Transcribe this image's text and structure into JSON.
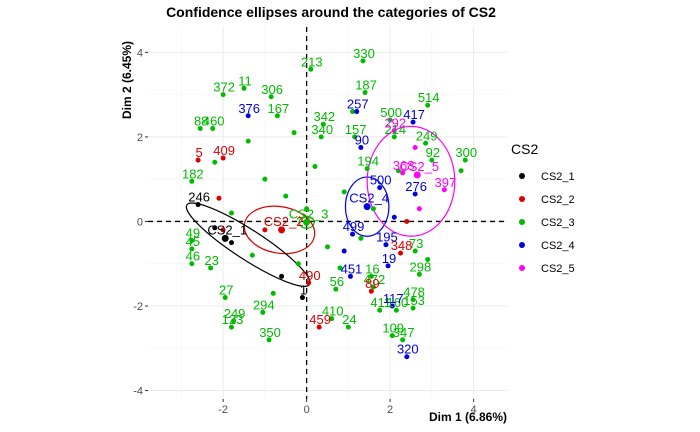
{
  "chart_data": {
    "type": "scatter",
    "title": "Confidence ellipses around the categories of CS2",
    "xlabel": "Dim 1 (6.86%)",
    "ylabel": "Dim 2 (6.45%)",
    "xlim": [
      -3.8,
      4.8
    ],
    "ylim": [
      -4.2,
      4.6
    ],
    "x_ticks": [
      -2,
      0,
      2,
      4
    ],
    "y_ticks": [
      -4,
      -2,
      0,
      2,
      4
    ],
    "x_tick_labels": [
      "-2",
      "0",
      "2",
      "4"
    ],
    "y_tick_labels": [
      "-4",
      "-2",
      "0",
      "2",
      "4"
    ],
    "grid": true,
    "reference_lines": {
      "x": 0,
      "y": 0,
      "style": "dashed"
    },
    "legend": {
      "title": "CS2",
      "position": "right",
      "entries": [
        {
          "label": "CS2_1",
          "color": "#000000"
        },
        {
          "label": "CS2_2",
          "color": "#dd0000"
        },
        {
          "label": "CS2_3",
          "color": "#00bb00"
        },
        {
          "label": "CS2_4",
          "color": "#0000dd"
        },
        {
          "label": "CS2_5",
          "color": "#ff00ff"
        }
      ]
    },
    "series": [
      {
        "name": "CS2_1",
        "color": "#000000",
        "points": [
          {
            "label": "246",
            "x": -2.6,
            "y": 0.4
          },
          {
            "label": "1",
            "x": -0.1,
            "y": -1.8
          },
          {
            "label": "",
            "x": -2.2,
            "y": -0.15
          },
          {
            "label": "",
            "x": -1.8,
            "y": -0.5
          },
          {
            "label": "",
            "x": -0.6,
            "y": -1.3
          }
        ],
        "centroid": {
          "label": "CS2_1",
          "x": -1.95,
          "y": -0.4
        },
        "ellipse": {
          "cx": -1.4,
          "cy": -0.55,
          "rx": 1.75,
          "ry": 0.35,
          "angle_deg": -33
        }
      },
      {
        "name": "CS2_2",
        "color": "#dd0000",
        "points": [
          {
            "label": "5",
            "x": -2.6,
            "y": 1.45
          },
          {
            "label": "409",
            "x": -2.0,
            "y": 1.5
          },
          {
            "label": "490",
            "x": 0.05,
            "y": -1.45
          },
          {
            "label": "459",
            "x": 0.3,
            "y": -2.5
          },
          {
            "label": "89",
            "x": 1.55,
            "y": -1.65
          },
          {
            "label": "348",
            "x": 2.25,
            "y": -0.75
          },
          {
            "label": "",
            "x": -2.1,
            "y": 0.55
          },
          {
            "label": "",
            "x": -1.0,
            "y": -0.2
          },
          {
            "label": "",
            "x": 2.4,
            "y": 0.0
          },
          {
            "label": "",
            "x": -2.0,
            "y": -0.2
          }
        ],
        "centroid": {
          "label": "CS2_2",
          "x": -0.6,
          "y": -0.2
        },
        "ellipse": {
          "cx": -0.65,
          "cy": -0.2,
          "rx": 0.85,
          "ry": 0.55,
          "angle_deg": -10
        }
      },
      {
        "name": "CS2_3",
        "color": "#00bb00",
        "points": [
          {
            "label": "213",
            "x": 0.1,
            "y": 3.6
          },
          {
            "label": "330",
            "x": 1.35,
            "y": 3.8
          },
          {
            "label": "372",
            "x": -2.0,
            "y": 3.0
          },
          {
            "label": "11",
            "x": -1.5,
            "y": 3.15
          },
          {
            "label": "306",
            "x": -0.85,
            "y": 2.95
          },
          {
            "label": "187",
            "x": 1.4,
            "y": 3.05
          },
          {
            "label": "514",
            "x": 2.9,
            "y": 2.75
          },
          {
            "label": "500",
            "x": 2.0,
            "y": 2.4
          },
          {
            "label": "342",
            "x": 0.4,
            "y": 2.3
          },
          {
            "label": "167",
            "x": -0.7,
            "y": 2.5
          },
          {
            "label": "249",
            "x": 2.85,
            "y": 1.85
          },
          {
            "label": "300",
            "x": 3.8,
            "y": 1.45
          },
          {
            "label": "214",
            "x": 2.1,
            "y": 2.0
          },
          {
            "label": "340",
            "x": 0.35,
            "y": 2.0
          },
          {
            "label": "157",
            "x": 1.15,
            "y": 2.0
          },
          {
            "label": "92",
            "x": 3.0,
            "y": 1.45
          },
          {
            "label": "194",
            "x": 1.45,
            "y": 1.25
          },
          {
            "label": "88",
            "x": -2.55,
            "y": 2.2
          },
          {
            "label": "460",
            "x": -2.25,
            "y": 2.2
          },
          {
            "label": "182",
            "x": -2.75,
            "y": 0.95
          },
          {
            "label": "49",
            "x": -2.75,
            "y": -0.45
          },
          {
            "label": "45",
            "x": -2.75,
            "y": -0.65
          },
          {
            "label": "46",
            "x": -2.75,
            "y": -1.0
          },
          {
            "label": "23",
            "x": -2.3,
            "y": -1.1
          },
          {
            "label": "27",
            "x": -1.95,
            "y": -1.8
          },
          {
            "label": "123",
            "x": -1.8,
            "y": -2.5
          },
          {
            "label": "249",
            "x": -1.75,
            "y": -2.35
          },
          {
            "label": "294",
            "x": -1.05,
            "y": -2.15
          },
          {
            "label": "350",
            "x": -0.9,
            "y": -2.8
          },
          {
            "label": "24",
            "x": 1.0,
            "y": -2.5
          },
          {
            "label": "410",
            "x": 0.6,
            "y": -2.3
          },
          {
            "label": "411",
            "x": 1.75,
            "y": -2.1
          },
          {
            "label": "160",
            "x": 2.15,
            "y": -2.1
          },
          {
            "label": "153",
            "x": 2.55,
            "y": -2.05
          },
          {
            "label": "478",
            "x": 2.55,
            "y": -1.85
          },
          {
            "label": "347",
            "x": 2.3,
            "y": -2.8
          },
          {
            "label": "109",
            "x": 2.05,
            "y": -2.7
          },
          {
            "label": "298",
            "x": 2.7,
            "y": -1.25
          },
          {
            "label": "73",
            "x": 2.6,
            "y": -0.7
          },
          {
            "label": "16",
            "x": 1.55,
            "y": -1.3
          },
          {
            "label": "472",
            "x": 1.6,
            "y": -1.55
          },
          {
            "label": "56",
            "x": 0.7,
            "y": -1.6
          },
          {
            "label": "",
            "x": -1.0,
            "y": 1.0
          },
          {
            "label": "",
            "x": -0.5,
            "y": 0.6
          },
          {
            "label": "",
            "x": 0.2,
            "y": 1.3
          },
          {
            "label": "",
            "x": 0.9,
            "y": 0.7
          },
          {
            "label": "",
            "x": 1.6,
            "y": 0.3
          },
          {
            "label": "",
            "x": 0.5,
            "y": -0.6
          },
          {
            "label": "",
            "x": -1.3,
            "y": -0.8
          },
          {
            "label": "",
            "x": -0.2,
            "y": -1.0
          },
          {
            "label": "",
            "x": 0.8,
            "y": -1.1
          },
          {
            "label": "",
            "x": -1.8,
            "y": 0.2
          },
          {
            "label": "",
            "x": -2.2,
            "y": 1.4
          },
          {
            "label": "",
            "x": 1.1,
            "y": 2.6
          },
          {
            "label": "",
            "x": 3.7,
            "y": 1.2
          },
          {
            "label": "",
            "x": -0.3,
            "y": 2.1
          },
          {
            "label": "",
            "x": 2.2,
            "y": 1.2
          },
          {
            "label": "",
            "x": -1.4,
            "y": 1.9
          },
          {
            "label": "",
            "x": 0.0,
            "y": 0.3
          },
          {
            "label": "",
            "x": -0.8,
            "y": -1.7
          },
          {
            "label": "",
            "x": 1.3,
            "y": -0.4
          },
          {
            "label": "",
            "x": 2.9,
            "y": -0.9
          }
        ],
        "centroid": {
          "label": "CS2_3",
          "x": 0.0,
          "y": -0.02
        },
        "ellipse": {
          "cx": 0.0,
          "cy": -0.02,
          "rx": 0.18,
          "ry": 0.14,
          "angle_deg": 0
        }
      },
      {
        "name": "CS2_4",
        "color": "#0000dd",
        "points": [
          {
            "label": "376",
            "x": -1.4,
            "y": 2.5
          },
          {
            "label": "257",
            "x": 1.2,
            "y": 2.6
          },
          {
            "label": "417",
            "x": 2.55,
            "y": 2.35
          },
          {
            "label": "90",
            "x": 1.3,
            "y": 1.75
          },
          {
            "label": "500",
            "x": 1.75,
            "y": 0.8
          },
          {
            "label": "276",
            "x": 2.6,
            "y": 0.65
          },
          {
            "label": "499",
            "x": 1.1,
            "y": -0.3
          },
          {
            "label": "195",
            "x": 1.9,
            "y": -0.55
          },
          {
            "label": "19",
            "x": 1.95,
            "y": -1.05
          },
          {
            "label": "451",
            "x": 1.05,
            "y": -1.3
          },
          {
            "label": "117",
            "x": 2.05,
            "y": -2.0
          },
          {
            "label": "320",
            "x": 2.4,
            "y": -3.2
          },
          {
            "label": "",
            "x": 0.9,
            "y": -0.7
          },
          {
            "label": "",
            "x": 2.1,
            "y": 0.1
          }
        ],
        "centroid": {
          "label": "CS2_4",
          "x": 1.45,
          "y": 0.35
        },
        "ellipse": {
          "cx": 1.45,
          "cy": 0.35,
          "rx": 0.52,
          "ry": 0.7,
          "angle_deg": 0
        }
      },
      {
        "name": "CS2_5",
        "color": "#ff00ff",
        "points": [
          {
            "label": "292",
            "x": 2.1,
            "y": 2.15
          },
          {
            "label": "397",
            "x": 3.3,
            "y": 0.75
          },
          {
            "label": "368",
            "x": 2.3,
            "y": 1.15
          },
          {
            "label": "",
            "x": 2.7,
            "y": 0.3
          },
          {
            "label": "",
            "x": 2.6,
            "y": 1.75
          }
        ],
        "centroid": {
          "label": "CS2_5",
          "x": 2.65,
          "y": 1.1
        },
        "ellipse": {
          "cx": 2.5,
          "cy": 0.95,
          "rx": 1.05,
          "ry": 1.3,
          "angle_deg": 0
        }
      }
    ]
  }
}
